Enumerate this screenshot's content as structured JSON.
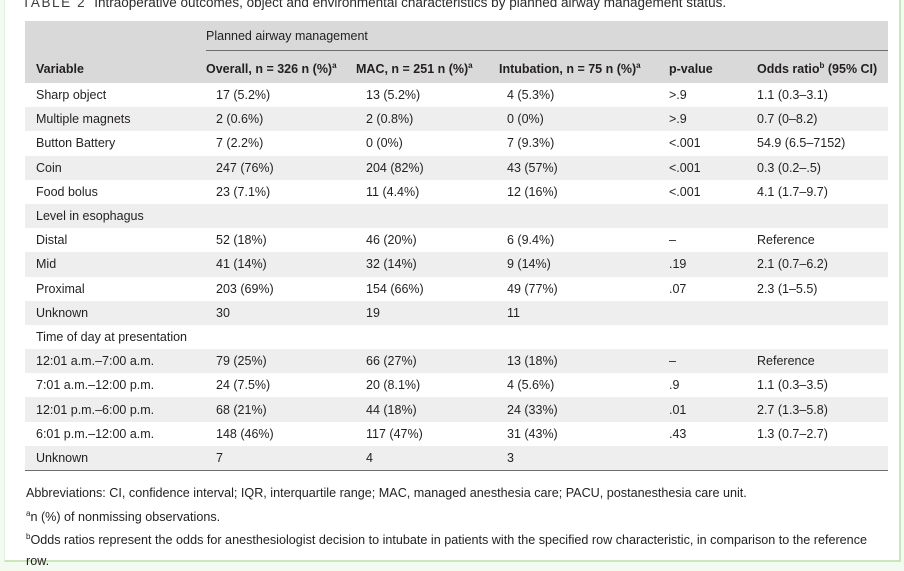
{
  "caption": {
    "label": "TABLE 2",
    "text": "Intraoperative outcomes, object and environmental characteristics by planned airway management status."
  },
  "header": {
    "group": "Planned airway management",
    "columns": {
      "variable": "Variable",
      "overall": "Overall, n = 326 n (%)",
      "overall_sup": "a",
      "mac": "MAC, n = 251 n (%)",
      "mac_sup": "a",
      "intubation": "Intubation, n = 75 n (%)",
      "intubation_sup": "a",
      "pvalue": "p-value",
      "odds": "Odds ratio",
      "odds_sup": "b",
      "odds_tail": " (95% CI)"
    }
  },
  "rows": [
    {
      "variable": "Sharp object",
      "overall": "17 (5.2%)",
      "mac": "13 (5.2%)",
      "intubation": "4 (5.3%)",
      "p": ">.9",
      "or": "1.1 (0.3–3.1)"
    },
    {
      "variable": "Multiple magnets",
      "overall": "2 (0.6%)",
      "mac": "2 (0.8%)",
      "intubation": "0 (0%)",
      "p": ">.9",
      "or": "0.7 (0–8.2)"
    },
    {
      "variable": "Button Battery",
      "overall": "7 (2.2%)",
      "mac": "0 (0%)",
      "intubation": "7 (9.3%)",
      "p": "<.001",
      "or": "54.9 (6.5–7152)"
    },
    {
      "variable": "Coin",
      "overall": "247 (76%)",
      "mac": "204 (82%)",
      "intubation": "43 (57%)",
      "p": "<.001",
      "or": "0.3 (0.2–.5)"
    },
    {
      "variable": "Food bolus",
      "overall": "23 (7.1%)",
      "mac": "11 (4.4%)",
      "intubation": "12 (16%)",
      "p": "<.001",
      "or": "4.1 (1.7–9.7)"
    },
    {
      "variable": "Level in esophagus",
      "overall": "",
      "mac": "",
      "intubation": "",
      "p": "",
      "or": ""
    },
    {
      "variable": "Distal",
      "overall": "52 (18%)",
      "mac": "46 (20%)",
      "intubation": "6 (9.4%)",
      "p": "–",
      "or": "Reference"
    },
    {
      "variable": "Mid",
      "overall": "41 (14%)",
      "mac": "32 (14%)",
      "intubation": "9 (14%)",
      "p": ".19",
      "or": "2.1 (0.7–6.2)"
    },
    {
      "variable": "Proximal",
      "overall": "203 (69%)",
      "mac": "154 (66%)",
      "intubation": "49 (77%)",
      "p": ".07",
      "or": "2.3 (1–5.5)"
    },
    {
      "variable": "Unknown",
      "overall": "30",
      "mac": "19",
      "intubation": "11",
      "p": "",
      "or": ""
    },
    {
      "variable": "Time of day at presentation",
      "overall": "",
      "mac": "",
      "intubation": "",
      "p": "",
      "or": ""
    },
    {
      "variable": "12:01 a.m.–7:00 a.m.",
      "overall": "79 (25%)",
      "mac": "66 (27%)",
      "intubation": "13 (18%)",
      "p": "–",
      "or": "Reference"
    },
    {
      "variable": "7:01 a.m.–12:00 p.m.",
      "overall": "24 (7.5%)",
      "mac": "20 (8.1%)",
      "intubation": "4 (5.6%)",
      "p": ".9",
      "or": "1.1 (0.3–3.5)"
    },
    {
      "variable": "12:01 p.m.–6:00 p.m.",
      "overall": "68 (21%)",
      "mac": "44 (18%)",
      "intubation": "24 (33%)",
      "p": ".01",
      "or": "2.7 (1.3–5.8)"
    },
    {
      "variable": "6:01 p.m.–12:00 a.m.",
      "overall": "148 (46%)",
      "mac": "117 (47%)",
      "intubation": "31 (43%)",
      "p": ".43",
      "or": "1.3 (0.7–2.7)"
    },
    {
      "variable": "Unknown",
      "overall": "7",
      "mac": "4",
      "intubation": "3",
      "p": "",
      "or": ""
    }
  ],
  "notes": {
    "abbreviations": "Abbreviations: CI, confidence interval; IQR, interquartile range; MAC, managed anesthesia care; PACU, postanesthesia care unit.",
    "a_mark": "a",
    "a_text": "n (%) of nonmissing observations.",
    "b_mark": "b",
    "b_text": "Odds ratios represent the odds for anesthesiologist decision to intubate in patients with the specified row characteristic, in comparison to the reference row."
  },
  "colors": {
    "header_bg": "#d9d9da",
    "stripe_bg": "#eeeeef",
    "page_bg": "#f3faf0",
    "border_accent": "#c9e6bd"
  }
}
